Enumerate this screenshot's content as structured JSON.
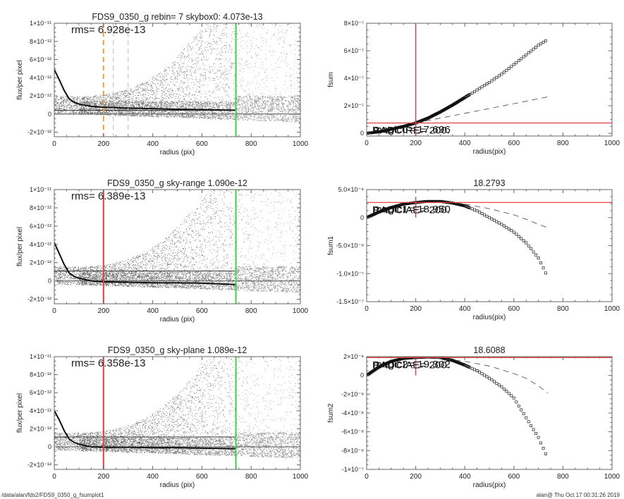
{
  "footer": {
    "path": "/data/alan/fds2/FDS9_0350_g_fsumplot1",
    "stamp": "alan@  Thu Oct 17 00:31:26 2019"
  },
  "colors": {
    "red": "#e04040",
    "green": "#44cc44",
    "orange": "#e8a040",
    "dark_points": "#333333",
    "light_points": "#999999",
    "profile": "#111111"
  },
  "chart_data": [
    {
      "id": "flux-rebin",
      "type": "scatter",
      "title": "FDS9_0350_g rebin= 7    skybox0:  4.073e-13",
      "annotation": "rms= 6.928e-13",
      "xlabel": "radius (pix)",
      "ylabel": "flux/per pixel",
      "xlim": [
        0,
        1000
      ],
      "ylim": [
        -2.5e-12,
        1e-11
      ],
      "xticks": [
        0,
        200,
        400,
        600,
        800,
        1000
      ],
      "xtick_labels": [
        "0",
        "200",
        "400",
        "600",
        "800",
        "1000"
      ],
      "yticks": [
        -2e-12,
        0,
        2e-12,
        4e-12,
        6e-12,
        8e-12,
        1e-11
      ],
      "ytick_labels": [
        "-2×10⁻¹²",
        "0",
        "2×10⁻¹²",
        "4×10⁻¹²",
        "6×10⁻¹²",
        "8×10⁻¹²",
        "1×10⁻¹¹"
      ],
      "hlines": [
        {
          "y": 0,
          "color": "#555555"
        },
        {
          "y": 4.073e-13,
          "color": "#333333"
        }
      ],
      "vlines": [
        {
          "x": 200,
          "color": "#e8a040",
          "style": "dashed"
        },
        {
          "x": 240,
          "color": "#bbbbbb",
          "style": "dashed"
        },
        {
          "x": 300,
          "color": "#bbbbbb",
          "style": "dashed"
        },
        {
          "x": 738,
          "color": "#44cc44",
          "style": "solid"
        }
      ],
      "profile": {
        "x": [
          0,
          20,
          40,
          60,
          80,
          100,
          150,
          200,
          300,
          400,
          500,
          600,
          738
        ],
        "y": [
          4.9e-12,
          3.8e-12,
          2.6e-12,
          1.7e-12,
          1.3e-12,
          1.1e-12,
          8.5e-13,
          7.5e-13,
          6.5e-13,
          6e-13,
          5.2e-13,
          4.8e-13,
          4.2e-13
        ]
      },
      "scatter_envelope": {
        "baseline": 4e-13,
        "spread": 1.2e-12
      }
    },
    {
      "id": "fsum",
      "type": "scatter",
      "title": "",
      "xlabel": "radius(pix)",
      "ylabel": "fsum",
      "xlim": [
        0,
        1000
      ],
      "ylim": [
        -2e-08,
        8e-07
      ],
      "xticks": [
        0,
        200,
        400,
        600,
        800,
        1000
      ],
      "xtick_labels": [
        "0",
        "200",
        "400",
        "600",
        "800",
        "1000"
      ],
      "yticks": [
        0,
        2e-07,
        4e-07,
        6e-07,
        8e-07
      ],
      "ytick_labels": [
        "0",
        "2×10⁻⁷",
        "4×10⁻⁷",
        "6×10⁻⁷",
        "8×10⁻⁷"
      ],
      "hline": {
        "y": 7.5e-08
      },
      "vline": {
        "x": 200
      },
      "labels": [
        "magic0= 17.696",
        "RADCIRE= 200."
      ],
      "series": [
        {
          "name": "fsum",
          "x": [
            0,
            50,
            100,
            150,
            200,
            250,
            300,
            350,
            400,
            450,
            500,
            550,
            600,
            650,
            700,
            738
          ],
          "y": [
            0,
            1e-08,
            3e-08,
            5e-08,
            7.5e-08,
            1.1e-07,
            1.55e-07,
            2.05e-07,
            2.6e-07,
            3.15e-07,
            3.7e-07,
            4.3e-07,
            5e-07,
            5.7e-07,
            6.4e-07,
            6.8e-07
          ]
        },
        {
          "name": "dashed",
          "x": [
            200,
            300,
            400,
            500,
            600,
            738
          ],
          "y": [
            7.5e-08,
            1.1e-07,
            1.45e-07,
            1.8e-07,
            2.15e-07,
            2.65e-07
          ]
        }
      ]
    },
    {
      "id": "flux-sky-range",
      "type": "scatter",
      "title": "FDS9_0350_g sky-range  1.090e-12",
      "annotation": "rms= 6.389e-13",
      "xlabel": "radius (pix)",
      "ylabel": "flux/per pixel",
      "xlim": [
        0,
        1000
      ],
      "ylim": [
        -2.5e-12,
        1e-11
      ],
      "xticks": [
        0,
        200,
        400,
        600,
        800,
        1000
      ],
      "xtick_labels": [
        "0",
        "200",
        "400",
        "600",
        "800",
        "1000"
      ],
      "yticks": [
        -2e-12,
        0,
        2e-12,
        4e-12,
        6e-12,
        8e-12,
        1e-11
      ],
      "ytick_labels": [
        "-2×10⁻¹²",
        "0",
        "2×10⁻¹²",
        "4×10⁻¹²",
        "6×10⁻¹²",
        "8×10⁻¹²",
        "1×10⁻¹¹"
      ],
      "hlines": [
        {
          "y": 0,
          "color": "#555555"
        },
        {
          "y": 1.09e-12,
          "color": "#333333"
        }
      ],
      "vlines": [
        {
          "x": 200,
          "color": "#e04040",
          "style": "solid"
        },
        {
          "x": 738,
          "color": "#44cc44",
          "style": "solid"
        }
      ],
      "profile": {
        "x": [
          0,
          20,
          40,
          60,
          80,
          100,
          150,
          200,
          300,
          400,
          500,
          600,
          738
        ],
        "y": [
          4.2e-12,
          3e-12,
          1.8e-12,
          9e-13,
          5e-13,
          3e-13,
          0,
          -1e-13,
          -1.5e-13,
          -2e-13,
          -2e-13,
          -2.5e-13,
          -4e-13
        ]
      },
      "scatter_envelope": {
        "baseline": 0,
        "spread": 1.2e-12
      }
    },
    {
      "id": "fsum1",
      "type": "scatter",
      "title": "18.2793",
      "xlabel": "radius(pix)",
      "ylabel": "fsum1",
      "xlim": [
        0,
        1000
      ],
      "ylim": [
        -1.5e-07,
        5e-08
      ],
      "xticks": [
        0,
        200,
        400,
        600,
        800,
        1000
      ],
      "xtick_labels": [
        "0",
        "200",
        "400",
        "600",
        "800",
        "1000"
      ],
      "yticks": [
        -1.5e-07,
        -1e-07,
        -5e-08,
        0,
        5e-08
      ],
      "ytick_labels": [
        "-1.5×10⁻⁷",
        "-1.0×10⁻⁷",
        "-5.0×10⁻⁸",
        "0",
        "5.0×10⁻⁸"
      ],
      "hline": {
        "y": 2.7e-08
      },
      "vline": {
        "x": 200
      },
      "labels": [
        "magic1= 18.950",
        "RADCIAE= 200."
      ],
      "series": [
        {
          "name": "fsum1",
          "x": [
            0,
            50,
            100,
            150,
            200,
            250,
            300,
            350,
            400,
            450,
            500,
            550,
            600,
            650,
            700,
            738
          ],
          "y": [
            0,
            1e-08,
            1.8e-08,
            2.4e-08,
            2.7e-08,
            2.9e-08,
            2.9e-08,
            2.6e-08,
            2.1e-08,
            1.2e-08,
            0,
            -1.2e-08,
            -2.6e-08,
            -4.5e-08,
            -7.2e-08,
            -1.06e-07
          ]
        },
        {
          "name": "dashed",
          "x": [
            200,
            300,
            400,
            500,
            600,
            650,
            700,
            738
          ],
          "y": [
            2.7e-08,
            2.8e-08,
            2.4e-08,
            1.6e-08,
            5e-09,
            -3e-09,
            -1.2e-08,
            -1.8e-08
          ]
        }
      ]
    },
    {
      "id": "flux-sky-plane",
      "type": "scatter",
      "title": "FDS9_0350_g sky-plane  1.089e-12",
      "annotation": "rms= 6.358e-13",
      "xlabel": "radius (pix)",
      "ylabel": "flux/per pixel",
      "xlim": [
        0,
        1000
      ],
      "ylim": [
        -2.5e-12,
        1e-11
      ],
      "xticks": [
        0,
        200,
        400,
        600,
        800,
        1000
      ],
      "xtick_labels": [
        "0",
        "200",
        "400",
        "600",
        "800",
        "1000"
      ],
      "yticks": [
        -2e-12,
        0,
        2e-12,
        4e-12,
        6e-12,
        8e-12,
        1e-11
      ],
      "ytick_labels": [
        "-2×10⁻¹²",
        "0",
        "2×10⁻¹²",
        "4×10⁻¹²",
        "6×10⁻¹²",
        "8×10⁻¹²",
        "1×10⁻¹¹"
      ],
      "hlines": [
        {
          "y": 0,
          "color": "#555555"
        },
        {
          "y": 1.089e-12,
          "color": "#333333"
        }
      ],
      "vlines": [
        {
          "x": 200,
          "color": "#e04040",
          "style": "solid"
        },
        {
          "x": 738,
          "color": "#44cc44",
          "style": "solid"
        }
      ],
      "profile": {
        "x": [
          0,
          20,
          40,
          60,
          80,
          100,
          150,
          200,
          300,
          400,
          500,
          600,
          738
        ],
        "y": [
          4e-12,
          3e-12,
          1.8e-12,
          9e-13,
          5e-13,
          3e-13,
          0,
          -5e-14,
          -5e-14,
          -1e-13,
          -1e-13,
          -1.5e-13,
          -2e-13
        ]
      },
      "scatter_envelope": {
        "baseline": 0,
        "spread": 1.2e-12
      }
    },
    {
      "id": "fsum2",
      "type": "scatter",
      "title": "18.6088",
      "xlabel": "radius(pix)",
      "ylabel": "fsum2",
      "xlim": [
        0,
        1000
      ],
      "ylim": [
        -1e-07,
        2e-08
      ],
      "xticks": [
        0,
        200,
        400,
        600,
        800,
        1000
      ],
      "xtick_labels": [
        "0",
        "200",
        "400",
        "600",
        "800",
        "1000"
      ],
      "yticks": [
        -1e-07,
        -8e-08,
        -6e-08,
        -4e-08,
        -2e-08,
        0,
        2e-08
      ],
      "ytick_labels": [
        "-1×10⁻⁷",
        "-8×10⁻⁸",
        "-6×10⁻⁸",
        "-4×10⁻⁸",
        "-2×10⁻⁸",
        "0",
        "2×10⁻⁸"
      ],
      "hline": {
        "y": 1.9e-08
      },
      "vline": {
        "x": 200
      },
      "labels": [
        "magic2= 19.302",
        "RADCIAE= 200."
      ],
      "series": [
        {
          "name": "fsum2",
          "x": [
            0,
            50,
            100,
            150,
            200,
            250,
            300,
            350,
            400,
            450,
            500,
            550,
            600,
            650,
            700,
            738
          ],
          "y": [
            0,
            9e-09,
            1.5e-08,
            1.8e-08,
            1.9e-08,
            1.95e-08,
            1.9e-08,
            1.6e-08,
            1.1e-08,
            5e-09,
            -3e-09,
            -1.2e-08,
            -2.4e-08,
            -4.5e-08,
            -6.6e-08,
            -8.8e-08
          ]
        },
        {
          "name": "dashed",
          "x": [
            200,
            300,
            400,
            500,
            600,
            650,
            700,
            738
          ],
          "y": [
            1.9e-08,
            1.8e-08,
            1.5e-08,
            1e-08,
            2e-09,
            -3e-09,
            -1.1e-08,
            -1.9e-08
          ]
        }
      ]
    }
  ]
}
